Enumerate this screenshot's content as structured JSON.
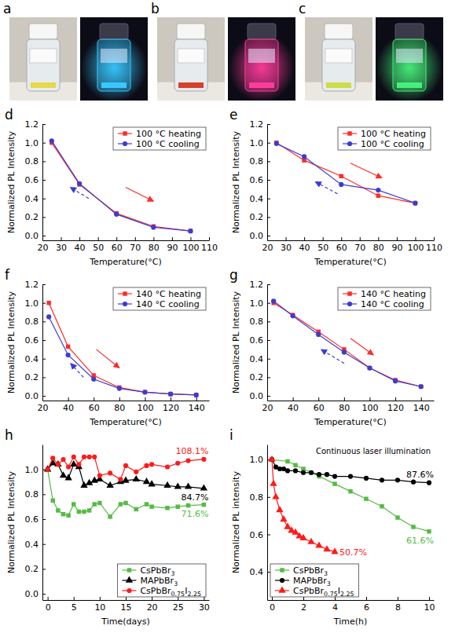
{
  "photos": [
    {
      "panel_label": "a"
    },
    {
      "panel_label": "b"
    },
    {
      "panel_label": "c"
    }
  ],
  "chart_data": [
    {
      "panel_label": "d",
      "type": "line",
      "x_label": "Temperature(°C)",
      "y_label": "Normalized PL Intensity",
      "x": [
        25,
        40,
        60,
        80,
        100
      ],
      "series": [
        {
          "name": "100 °C heating",
          "color": "#ff2a2a",
          "marker": "square",
          "line_style": "solid",
          "values": [
            1.0,
            0.55,
            0.24,
            0.1,
            0.05
          ]
        },
        {
          "name": "100 °C cooling",
          "color": "#3c3cd0",
          "marker": "circle",
          "line_style": "solid",
          "values": [
            1.02,
            0.56,
            0.23,
            0.09,
            0.05
          ]
        }
      ],
      "xlim": [
        20,
        110
      ],
      "xticks": [
        20,
        30,
        40,
        50,
        60,
        70,
        80,
        90,
        100,
        110
      ],
      "ylim": [
        -0.05,
        1.2
      ],
      "yticks": [
        {
          "value": 0,
          "label": "0.0"
        },
        0.2,
        0.4,
        0.6,
        0.8,
        {
          "value": 1,
          "label": "1.0"
        },
        1.2
      ],
      "legend": "upper right"
    },
    {
      "panel_label": "e",
      "type": "line",
      "x_label": "Temperature(°C)",
      "y_label": "Normalized PL Intensity",
      "x": [
        25,
        40,
        60,
        80,
        100
      ],
      "series": [
        {
          "name": "100 °C heating",
          "color": "#ff2a2a",
          "marker": "square",
          "line_style": "solid",
          "values": [
            1.0,
            0.81,
            0.64,
            0.43,
            0.35
          ]
        },
        {
          "name": "100 °C cooling",
          "color": "#3c3cd0",
          "marker": "circle",
          "line_style": "solid",
          "values": [
            0.99,
            0.85,
            0.55,
            0.49,
            0.35
          ]
        }
      ],
      "xlim": [
        20,
        110
      ],
      "xticks": [
        20,
        30,
        40,
        50,
        60,
        70,
        80,
        90,
        100,
        110
      ],
      "ylim": [
        -0.05,
        1.2
      ],
      "yticks": [
        {
          "value": 0,
          "label": "0.0"
        },
        0.2,
        0.4,
        0.6,
        0.8,
        {
          "value": 1,
          "label": "1.0"
        },
        1.2
      ],
      "legend": "upper right"
    },
    {
      "panel_label": "f",
      "type": "line",
      "x_label": "Temperature(°C)",
      "y_label": "Normalized PL Intensity",
      "x": [
        25,
        40,
        60,
        80,
        100,
        120,
        140
      ],
      "series": [
        {
          "name": "140 °C heating",
          "color": "#ff2a2a",
          "marker": "square",
          "line_style": "solid",
          "values": [
            1.0,
            0.53,
            0.22,
            0.09,
            0.04,
            0.02,
            0.01
          ]
        },
        {
          "name": "140 °C cooling",
          "color": "#3c3cd0",
          "marker": "circle",
          "line_style": "solid",
          "values": [
            0.85,
            0.44,
            0.18,
            0.08,
            0.04,
            0.02,
            0.01
          ]
        }
      ],
      "xlim": [
        20,
        150
      ],
      "xticks": [
        20,
        40,
        60,
        80,
        100,
        120,
        140
      ],
      "ylim": [
        -0.05,
        1.2
      ],
      "yticks": [
        {
          "value": 0,
          "label": "0.0"
        },
        0.2,
        0.4,
        0.6,
        0.8,
        {
          "value": 1,
          "label": "1.0"
        },
        1.2
      ],
      "legend": "upper right"
    },
    {
      "panel_label": "g",
      "type": "line",
      "x_label": "Temperature(°C)",
      "y_label": "Normalized PL Intensity",
      "x": [
        25,
        40,
        60,
        80,
        100,
        120,
        140
      ],
      "series": [
        {
          "name": "140 °C heating",
          "color": "#ff2a2a",
          "marker": "square",
          "line_style": "solid",
          "values": [
            1.0,
            0.87,
            0.69,
            0.5,
            0.3,
            0.17,
            0.1
          ]
        },
        {
          "name": "140 °C cooling",
          "color": "#3c3cd0",
          "marker": "circle",
          "line_style": "solid",
          "values": [
            1.02,
            0.86,
            0.66,
            0.47,
            0.3,
            0.16,
            0.1
          ]
        }
      ],
      "xlim": [
        20,
        150
      ],
      "xticks": [
        20,
        40,
        60,
        80,
        100,
        120,
        140
      ],
      "ylim": [
        -0.05,
        1.2
      ],
      "yticks": [
        {
          "value": 0,
          "label": "0.0"
        },
        0.2,
        0.4,
        0.6,
        0.8,
        {
          "value": 1,
          "label": "1.0"
        },
        1.2
      ],
      "legend": "upper right"
    },
    {
      "panel_label": "h",
      "type": "line",
      "x_label": "Time(days)",
      "y_label": "Normalized PL Intensity",
      "x": [
        0,
        1,
        2,
        3,
        4,
        5,
        6,
        7,
        8,
        9,
        10,
        12,
        14,
        15,
        17,
        19,
        20,
        23,
        25,
        27,
        30
      ],
      "series": [
        {
          "name": "CsPbBr3",
          "color": "#55bb44",
          "marker": "square",
          "line_style": "solid",
          "values": [
            1.0,
            0.75,
            0.67,
            0.64,
            0.63,
            0.72,
            0.66,
            0.66,
            0.67,
            0.72,
            0.73,
            0.62,
            0.72,
            0.73,
            0.68,
            0.72,
            0.7,
            0.69,
            0.7,
            0.71,
            0.716
          ],
          "value_labels": [
            null,
            null,
            null,
            null,
            null,
            null,
            null,
            null,
            null,
            null,
            null,
            null,
            null,
            null,
            null,
            null,
            null,
            null,
            null,
            null,
            "71.6%"
          ]
        },
        {
          "name": "MAPbBr3",
          "color": "#000000",
          "marker": "triangle",
          "line_style": "solid",
          "values": [
            1.0,
            1.05,
            1.04,
            0.95,
            0.93,
            1.04,
            1.02,
            0.87,
            0.89,
            0.91,
            0.92,
            0.87,
            0.9,
            0.91,
            0.92,
            0.9,
            0.88,
            0.87,
            0.86,
            0.86,
            0.847
          ],
          "value_labels": [
            null,
            null,
            null,
            null,
            null,
            null,
            null,
            null,
            null,
            null,
            null,
            null,
            null,
            null,
            null,
            null,
            null,
            null,
            null,
            null,
            "84.7%"
          ]
        },
        {
          "name": "CsPbBr0.75I2.25",
          "color": "#ff1a1a",
          "marker": "circle",
          "line_style": "solid",
          "values": [
            1.0,
            1.09,
            1.04,
            1.08,
            1.02,
            1.1,
            1.04,
            1.1,
            1.1,
            1.1,
            0.95,
            0.97,
            0.92,
            1.03,
            0.98,
            1.03,
            1.04,
            1.02,
            1.05,
            1.07,
            1.081
          ],
          "value_labels": [
            null,
            null,
            null,
            null,
            null,
            null,
            null,
            null,
            null,
            null,
            null,
            null,
            null,
            null,
            null,
            null,
            null,
            null,
            null,
            null,
            "108.1%"
          ]
        }
      ],
      "xlim": [
        -1,
        31
      ],
      "xticks": [
        0,
        5,
        10,
        15,
        20,
        25,
        30
      ],
      "ylim": [
        -0.05,
        1.2
      ],
      "yticks": [
        {
          "value": 0,
          "label": "0.0"
        },
        0.2,
        0.4,
        0.6,
        0.8,
        {
          "value": 1,
          "label": "1.0"
        }
      ],
      "legend": "lower right",
      "data_labels": true
    },
    {
      "panel_label": "i",
      "type": "line",
      "x_label": "Time(h)",
      "y_label": "Normalized PL intensity",
      "annotation": "Continuous laser illumination",
      "series": [
        {
          "name": "CsPbBr3",
          "color": "#55bb44",
          "marker": "square",
          "line_style": "solid",
          "x": [
            0,
            1,
            1.5,
            2,
            2.5,
            3,
            4,
            5,
            6,
            7,
            8,
            9,
            10
          ],
          "values": [
            1.0,
            0.99,
            0.97,
            0.95,
            0.93,
            0.91,
            0.87,
            0.83,
            0.79,
            0.75,
            0.69,
            0.64,
            0.616
          ],
          "value_labels": [
            null,
            null,
            null,
            null,
            null,
            null,
            null,
            null,
            null,
            null,
            null,
            null,
            "61.6%"
          ]
        },
        {
          "name": "MAPbBr3",
          "color": "#000000",
          "marker": "circle",
          "line_style": "solid",
          "x": [
            0,
            0.25,
            0.5,
            0.75,
            1,
            1.5,
            2,
            2.5,
            3,
            3.5,
            4,
            5,
            6,
            7,
            8,
            9,
            10
          ],
          "values": [
            1.0,
            0.96,
            0.95,
            0.95,
            0.94,
            0.94,
            0.93,
            0.93,
            0.92,
            0.92,
            0.91,
            0.91,
            0.9,
            0.89,
            0.89,
            0.88,
            0.876
          ],
          "value_labels": [
            null,
            null,
            null,
            null,
            null,
            null,
            null,
            null,
            null,
            null,
            null,
            null,
            null,
            null,
            null,
            null,
            "87.6%"
          ]
        },
        {
          "name": "CsPbBr0.75I2.25",
          "color": "#ff1a1a",
          "marker": "triangle",
          "line_style": "solid",
          "x": [
            0,
            0.1,
            0.25,
            0.5,
            0.75,
            1,
            1.25,
            1.5,
            1.75,
            2,
            2.5,
            3,
            3.5,
            4
          ],
          "values": [
            1.0,
            0.87,
            0.8,
            0.73,
            0.68,
            0.64,
            0.62,
            0.61,
            0.59,
            0.58,
            0.56,
            0.54,
            0.52,
            0.507
          ],
          "value_labels": [
            null,
            null,
            null,
            null,
            null,
            null,
            null,
            null,
            null,
            null,
            null,
            null,
            null,
            "50.7%"
          ]
        }
      ],
      "xlim": [
        -0.3,
        10.3
      ],
      "xticks": [
        0,
        2,
        4,
        6,
        8,
        10
      ],
      "ylim": [
        0.25,
        1.08
      ],
      "yticks": [
        0.4,
        0.6,
        0.8,
        {
          "value": 1,
          "label": "1.0"
        }
      ],
      "legend": "lower left",
      "data_labels": true
    }
  ]
}
